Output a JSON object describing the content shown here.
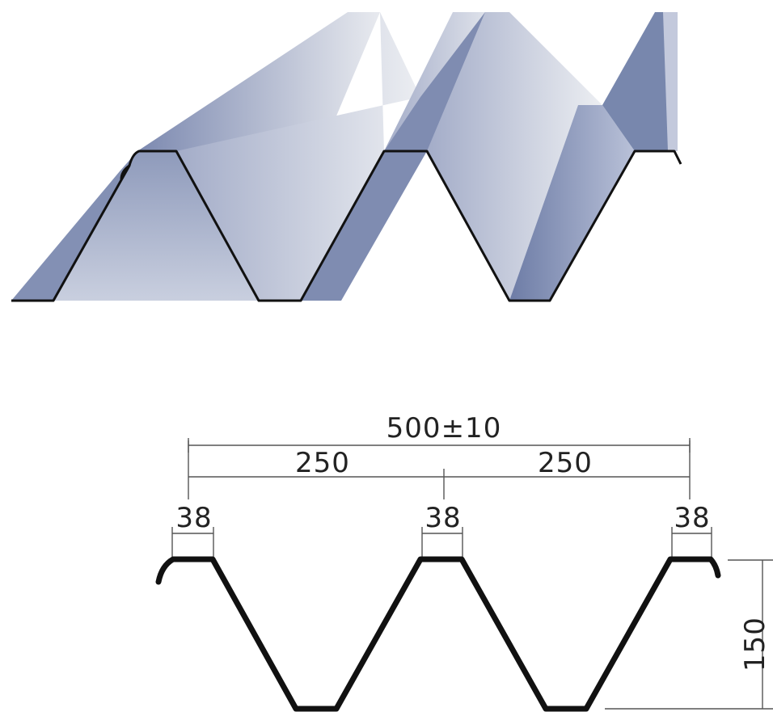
{
  "illustration": {
    "colors": {
      "steel_dark": "#6f7fa8",
      "steel_mid": "#9aa6c4",
      "steel_light": "#e6e8ee",
      "outline": "#111111"
    }
  },
  "dimensions": {
    "total_width": "500±10",
    "pitch_left": "250",
    "pitch_right": "250",
    "top_flange_1": "38",
    "top_flange_2": "38",
    "top_flange_3": "38",
    "height": "150"
  }
}
